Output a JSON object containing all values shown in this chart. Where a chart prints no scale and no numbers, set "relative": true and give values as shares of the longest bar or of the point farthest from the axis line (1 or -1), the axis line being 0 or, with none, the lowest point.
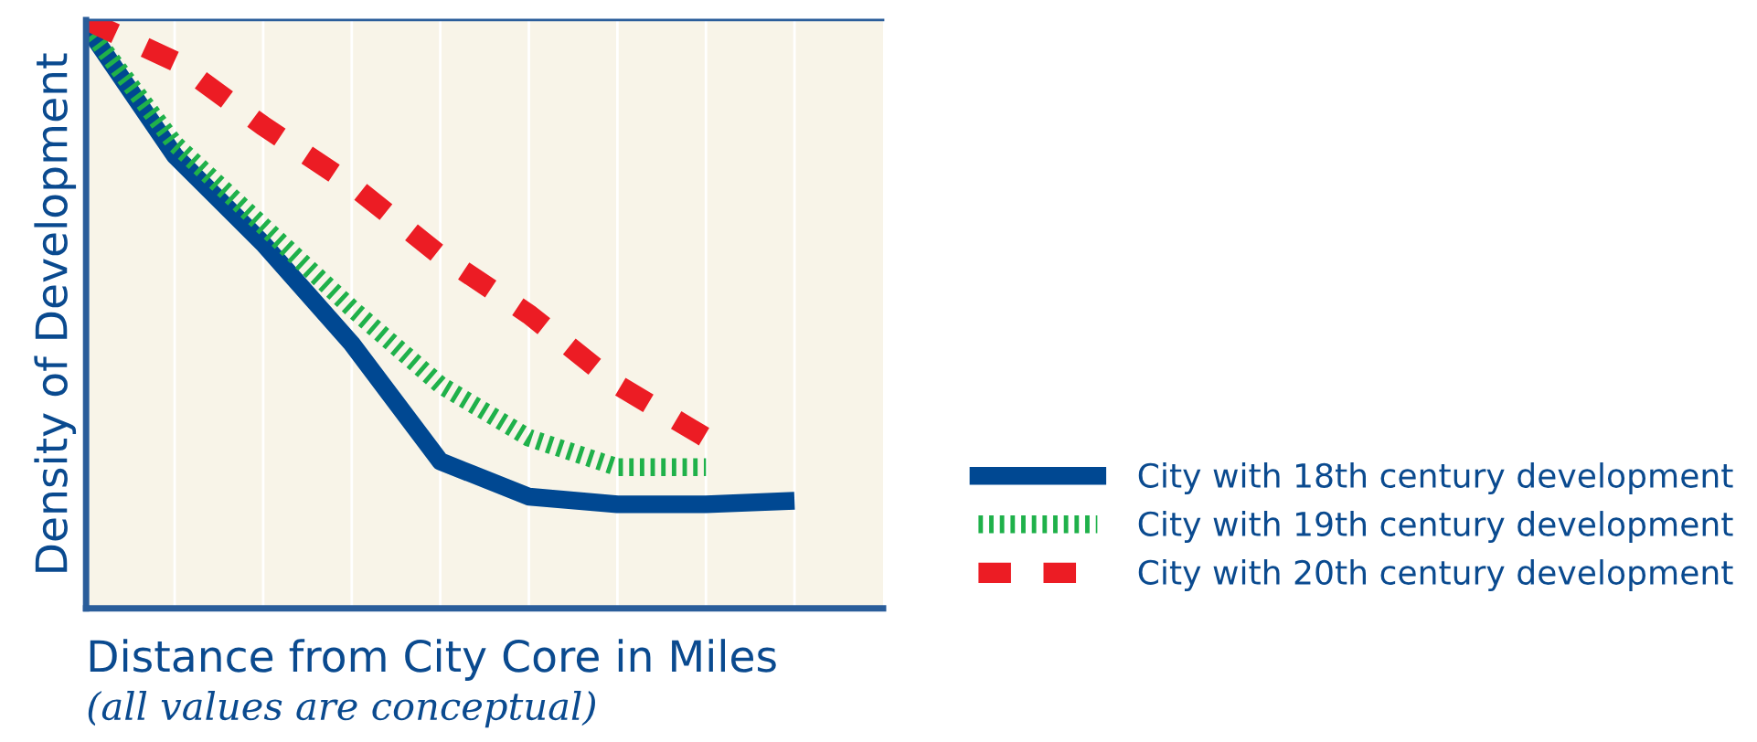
{
  "chart_data": {
    "type": "line",
    "relative": true,
    "xlabel": "Distance from City Core in Miles",
    "ylabel": "Density of Development",
    "annotations": [
      "(all values are conceptual)"
    ],
    "categories": [
      null,
      null,
      null,
      null,
      null,
      null,
      null,
      null,
      null
    ],
    "series": [
      {
        "name": "City with 18th century development",
        "color": "#004892",
        "line_style": "solid",
        "values": [
          0.99,
          0.77,
          0.62,
          0.45,
          0.25,
          0.19,
          0.177,
          0.177,
          0.183
        ]
      },
      {
        "name": "City with 19th century development",
        "color": "#1fb14a",
        "line_style": "dotted",
        "values": [
          0.99,
          0.79,
          0.65,
          0.51,
          0.38,
          0.29,
          0.24,
          0.24,
          null
        ]
      },
      {
        "name": "City with 20th century development",
        "color": "#ec1c24",
        "line_style": "dashed",
        "values": [
          1.0,
          0.93,
          0.82,
          0.72,
          0.6,
          0.5,
          0.38,
          0.29,
          null
        ]
      }
    ],
    "grid": "x",
    "legend": "right",
    "tick_labels": false
  }
}
